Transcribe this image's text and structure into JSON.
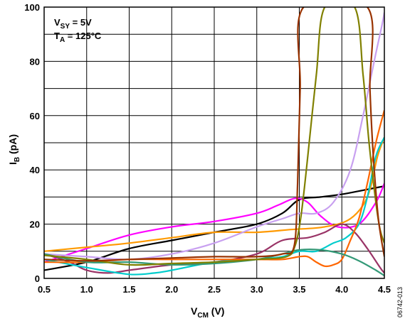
{
  "chart_data": {
    "type": "line",
    "xlabel": {
      "main": "V",
      "sub": "CM",
      "rest": " (V)"
    },
    "ylabel": {
      "main": "I",
      "sub": "B",
      "rest": " (pA)"
    },
    "xlim": [
      0.5,
      4.5
    ],
    "ylim": [
      0,
      100
    ],
    "xticks": [
      "0.5",
      "1.0",
      "1.5",
      "2.0",
      "2.5",
      "3.0",
      "3.5",
      "4.0",
      "4.5"
    ],
    "yticks": [
      "0",
      "20",
      "40",
      "60",
      "80",
      "100"
    ],
    "grid": true,
    "conditions": [
      {
        "main": "V",
        "sub": "SY",
        "rest": " = 5V"
      },
      {
        "main": "T",
        "sub": "A",
        "rest": " = 125°C"
      }
    ],
    "figure_id": "06742-013",
    "series": [
      {
        "color": "#000000",
        "points": [
          [
            0.5,
            3
          ],
          [
            1.0,
            6
          ],
          [
            1.5,
            11
          ],
          [
            2.0,
            14
          ],
          [
            2.5,
            17
          ],
          [
            3.0,
            20
          ],
          [
            3.3,
            24
          ],
          [
            3.5,
            29
          ],
          [
            3.75,
            30
          ],
          [
            4.0,
            31
          ],
          [
            4.25,
            32.5
          ],
          [
            4.5,
            34
          ]
        ]
      },
      {
        "color": "#ff00ff",
        "points": [
          [
            0.5,
            6
          ],
          [
            1.0,
            11
          ],
          [
            1.5,
            16
          ],
          [
            2.0,
            19
          ],
          [
            2.5,
            21
          ],
          [
            3.0,
            24
          ],
          [
            3.25,
            27
          ],
          [
            3.45,
            29.5
          ],
          [
            3.6,
            28
          ],
          [
            3.75,
            23
          ],
          [
            3.95,
            19
          ],
          [
            4.2,
            20
          ],
          [
            4.4,
            28
          ],
          [
            4.5,
            35
          ]
        ]
      },
      {
        "color": "#ff9900",
        "points": [
          [
            0.5,
            10
          ],
          [
            1.0,
            11.5
          ],
          [
            1.5,
            13
          ],
          [
            2.0,
            15
          ],
          [
            2.5,
            17
          ],
          [
            3.0,
            17
          ],
          [
            3.4,
            18
          ],
          [
            3.8,
            19
          ],
          [
            4.1,
            22
          ],
          [
            4.3,
            30
          ],
          [
            4.42,
            45
          ],
          [
            4.5,
            52
          ]
        ]
      },
      {
        "color": "#c8a0f0",
        "points": [
          [
            0.5,
            9
          ],
          [
            1.0,
            8
          ],
          [
            1.5,
            7
          ],
          [
            2.0,
            9
          ],
          [
            2.5,
            13
          ],
          [
            3.0,
            19
          ],
          [
            3.3,
            22
          ],
          [
            3.5,
            24
          ],
          [
            3.7,
            24
          ],
          [
            3.9,
            28
          ],
          [
            4.1,
            40
          ],
          [
            4.25,
            60
          ],
          [
            4.38,
            80
          ],
          [
            4.47,
            93
          ],
          [
            4.5,
            98
          ]
        ]
      },
      {
        "color": "#993366",
        "points": [
          [
            0.5,
            9
          ],
          [
            0.8,
            6
          ],
          [
            1.0,
            3
          ],
          [
            1.25,
            2
          ],
          [
            1.5,
            3
          ],
          [
            2.0,
            5
          ],
          [
            2.5,
            6
          ],
          [
            3.0,
            9
          ],
          [
            3.3,
            14
          ],
          [
            3.6,
            15
          ],
          [
            3.8,
            17
          ],
          [
            4.0,
            20
          ],
          [
            4.15,
            17
          ],
          [
            4.3,
            11
          ],
          [
            4.45,
            4
          ],
          [
            4.5,
            2
          ]
        ]
      },
      {
        "color": "#00cccc",
        "points": [
          [
            0.5,
            7
          ],
          [
            1.0,
            4
          ],
          [
            1.5,
            1.5
          ],
          [
            1.8,
            2
          ],
          [
            2.0,
            3
          ],
          [
            2.5,
            6
          ],
          [
            3.0,
            7
          ],
          [
            3.3,
            8
          ],
          [
            3.5,
            10
          ],
          [
            3.7,
            10
          ],
          [
            3.9,
            13
          ],
          [
            4.05,
            15
          ],
          [
            4.2,
            20
          ],
          [
            4.3,
            30
          ],
          [
            4.4,
            45
          ],
          [
            4.5,
            52
          ]
        ]
      },
      {
        "color": "#ff6600",
        "points": [
          [
            0.5,
            6
          ],
          [
            1.0,
            6
          ],
          [
            1.5,
            7
          ],
          [
            2.0,
            7
          ],
          [
            2.5,
            7
          ],
          [
            3.0,
            7
          ],
          [
            3.3,
            7
          ],
          [
            3.5,
            8
          ],
          [
            3.6,
            8
          ],
          [
            3.7,
            6
          ],
          [
            3.8,
            4.5
          ],
          [
            3.9,
            5
          ],
          [
            4.0,
            7
          ],
          [
            4.1,
            14
          ],
          [
            4.2,
            22
          ],
          [
            4.3,
            35
          ],
          [
            4.4,
            50
          ],
          [
            4.5,
            62
          ]
        ]
      },
      {
        "color": "#339977",
        "points": [
          [
            0.5,
            9
          ],
          [
            1.0,
            6
          ],
          [
            1.5,
            6
          ],
          [
            2.0,
            5
          ],
          [
            2.5,
            5.5
          ],
          [
            3.0,
            7
          ],
          [
            3.3,
            9
          ],
          [
            3.5,
            10.5
          ],
          [
            3.75,
            10.5
          ],
          [
            4.0,
            9
          ],
          [
            4.2,
            6.5
          ],
          [
            4.4,
            3
          ],
          [
            4.5,
            1
          ]
        ]
      },
      {
        "color": "#808000",
        "points": [
          [
            0.5,
            8.5
          ],
          [
            1.0,
            7
          ],
          [
            1.5,
            5
          ],
          [
            2.0,
            5.5
          ],
          [
            2.5,
            6
          ],
          [
            3.0,
            7
          ],
          [
            3.35,
            8
          ],
          [
            3.45,
            12
          ],
          [
            3.52,
            23
          ],
          [
            3.6,
            45
          ],
          [
            3.7,
            75
          ],
          [
            3.8,
            100
          ],
          [
            4.15,
            100
          ],
          [
            4.25,
            75
          ],
          [
            4.32,
            50
          ],
          [
            4.4,
            28
          ],
          [
            4.45,
            18
          ],
          [
            4.5,
            13
          ]
        ]
      },
      {
        "color": "#993300",
        "points": [
          [
            0.5,
            7
          ],
          [
            1.0,
            6.5
          ],
          [
            1.5,
            7
          ],
          [
            2.0,
            7.5
          ],
          [
            2.5,
            8
          ],
          [
            3.0,
            8
          ],
          [
            3.3,
            9
          ],
          [
            3.44,
            12
          ],
          [
            3.48,
            35
          ],
          [
            3.51,
            70
          ],
          [
            3.55,
            100
          ],
          [
            4.3,
            100
          ],
          [
            4.33,
            70
          ],
          [
            4.37,
            45
          ],
          [
            4.43,
            22
          ],
          [
            4.5,
            8
          ]
        ]
      }
    ]
  }
}
